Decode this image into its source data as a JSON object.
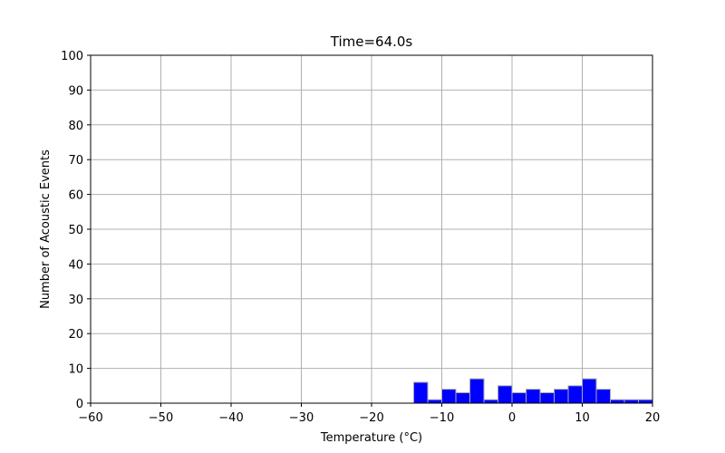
{
  "chart_data": {
    "type": "bar",
    "title": "Time=64.0s",
    "xlabel": "Temperature (°C)",
    "ylabel": "Number of Acoustic Events",
    "xlim": [
      -60,
      20
    ],
    "ylim": [
      0,
      100
    ],
    "xticks": [
      "−60",
      "−50",
      "−40",
      "−30",
      "−20",
      "−10",
      "0",
      "10",
      "20"
    ],
    "yticks": [
      "0",
      "10",
      "20",
      "30",
      "40",
      "50",
      "60",
      "70",
      "80",
      "90",
      "100"
    ],
    "grid": true,
    "bin_width": 2,
    "bins": [
      {
        "x0": -14,
        "x1": -12,
        "count": 6
      },
      {
        "x0": -12,
        "x1": -10,
        "count": 1
      },
      {
        "x0": -10,
        "x1": -8,
        "count": 4
      },
      {
        "x0": -8,
        "x1": -6,
        "count": 3
      },
      {
        "x0": -6,
        "x1": -4,
        "count": 7
      },
      {
        "x0": -4,
        "x1": -2,
        "count": 1
      },
      {
        "x0": -2,
        "x1": 0,
        "count": 5
      },
      {
        "x0": 0,
        "x1": 2,
        "count": 3
      },
      {
        "x0": 2,
        "x1": 4,
        "count": 4
      },
      {
        "x0": 4,
        "x1": 6,
        "count": 3
      },
      {
        "x0": 6,
        "x1": 8,
        "count": 4
      },
      {
        "x0": 8,
        "x1": 10,
        "count": 5
      },
      {
        "x0": 10,
        "x1": 12,
        "count": 7
      },
      {
        "x0": 12,
        "x1": 14,
        "count": 4
      },
      {
        "x0": 14,
        "x1": 16,
        "count": 1
      },
      {
        "x0": 16,
        "x1": 18,
        "count": 1
      },
      {
        "x0": 18,
        "x1": 20,
        "count": 1
      }
    ],
    "colors": {
      "bar_fill": "#0000ff",
      "bar_edge": "#aaaaaa",
      "grid": "#b0b0b0",
      "axis": "#000000"
    }
  }
}
